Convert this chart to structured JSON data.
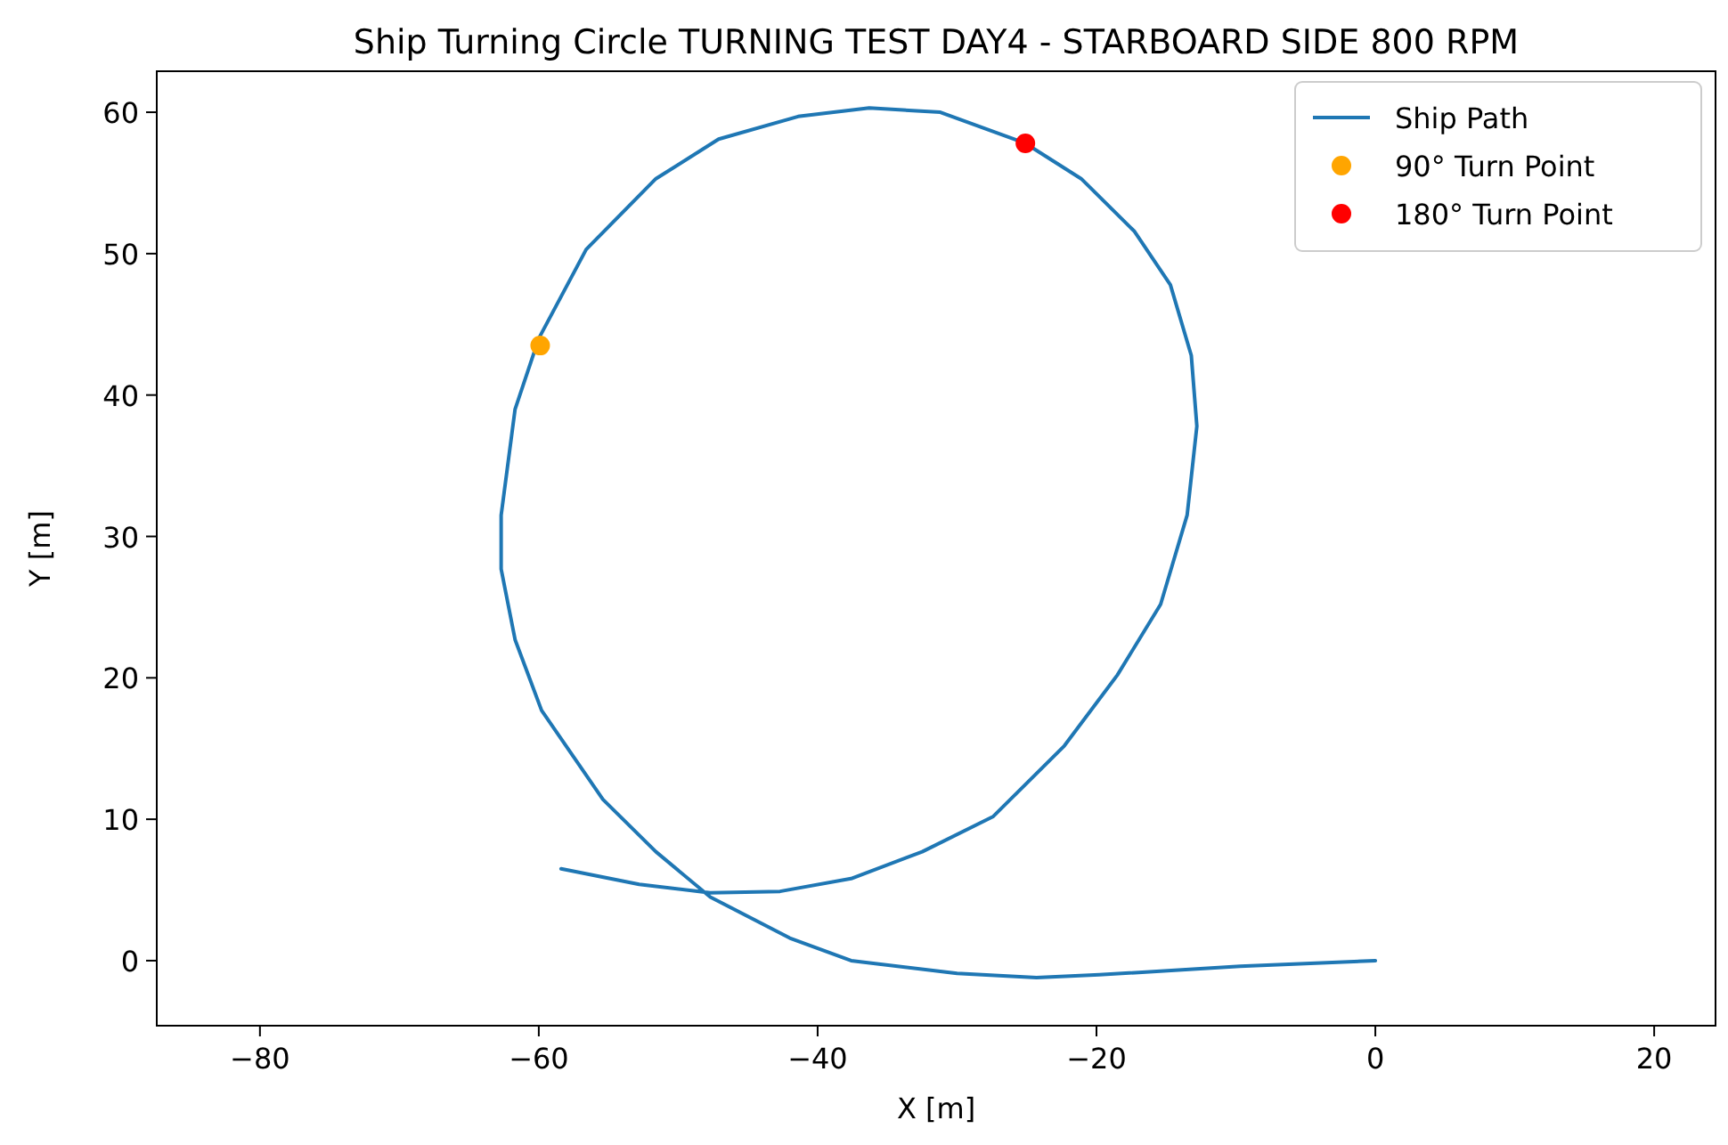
{
  "chart_data": {
    "type": "line",
    "title": "Ship Turning Circle TURNING TEST DAY4 - STARBOARD SIDE 800 RPM",
    "xlabel": "X [m]",
    "ylabel": "Y [m]",
    "xlim": [
      -87.4,
      24.4
    ],
    "ylim": [
      -4.6,
      62.9
    ],
    "xticks": [
      {
        "value": -80,
        "label": "−80"
      },
      {
        "value": -60,
        "label": "−60"
      },
      {
        "value": -40,
        "label": "−40"
      },
      {
        "value": -20,
        "label": "−20"
      },
      0,
      20
    ],
    "yticks": [
      0,
      10,
      20,
      30,
      40,
      50,
      60
    ],
    "grid": false,
    "legend": "top right",
    "series": [
      {
        "name": "Ship Path",
        "color": "#1f77b4",
        "marker": "none",
        "line_style": "solid",
        "x": [
          0,
          -9.7,
          -19.8,
          -24.3,
          -30,
          -37.6,
          -42,
          -47.7,
          -51.6,
          -55.4,
          -59.8,
          -61.7,
          -62.7,
          -62.7,
          -61.7,
          -60,
          -56.6,
          -51.6,
          -47.1,
          -41.4,
          -36.3,
          -31.2,
          -25.1,
          -21.1,
          -17.3,
          -14.7,
          -13.2,
          -12.8,
          -13.5,
          -15.4,
          -18.5,
          -22.3,
          -27.4,
          -32.5,
          -37.6,
          -42.7,
          -47.7,
          -52.8,
          -58.4
        ],
        "values": [
          0,
          -0.4,
          -1.0,
          -1.2,
          -0.9,
          0,
          1.6,
          4.5,
          7.7,
          11.4,
          17.7,
          22.7,
          27.7,
          31.5,
          39,
          44,
          50.3,
          55.3,
          58.1,
          59.7,
          60.3,
          60,
          57.8,
          55.3,
          51.6,
          47.8,
          42.8,
          37.8,
          31.5,
          25.2,
          20.2,
          15.2,
          10.2,
          7.7,
          5.8,
          4.9,
          4.8,
          5.4,
          6.5
        ]
      },
      {
        "name": "90° Turn Point",
        "type": "scatter",
        "color": "#ffa500",
        "marker": "circle",
        "x": [
          -59.9
        ],
        "values": [
          43.5
        ]
      },
      {
        "name": "180° Turn Point",
        "type": "scatter",
        "color": "#ff0000",
        "marker": "circle",
        "x": [
          -25.1
        ],
        "values": [
          57.8
        ]
      }
    ]
  }
}
